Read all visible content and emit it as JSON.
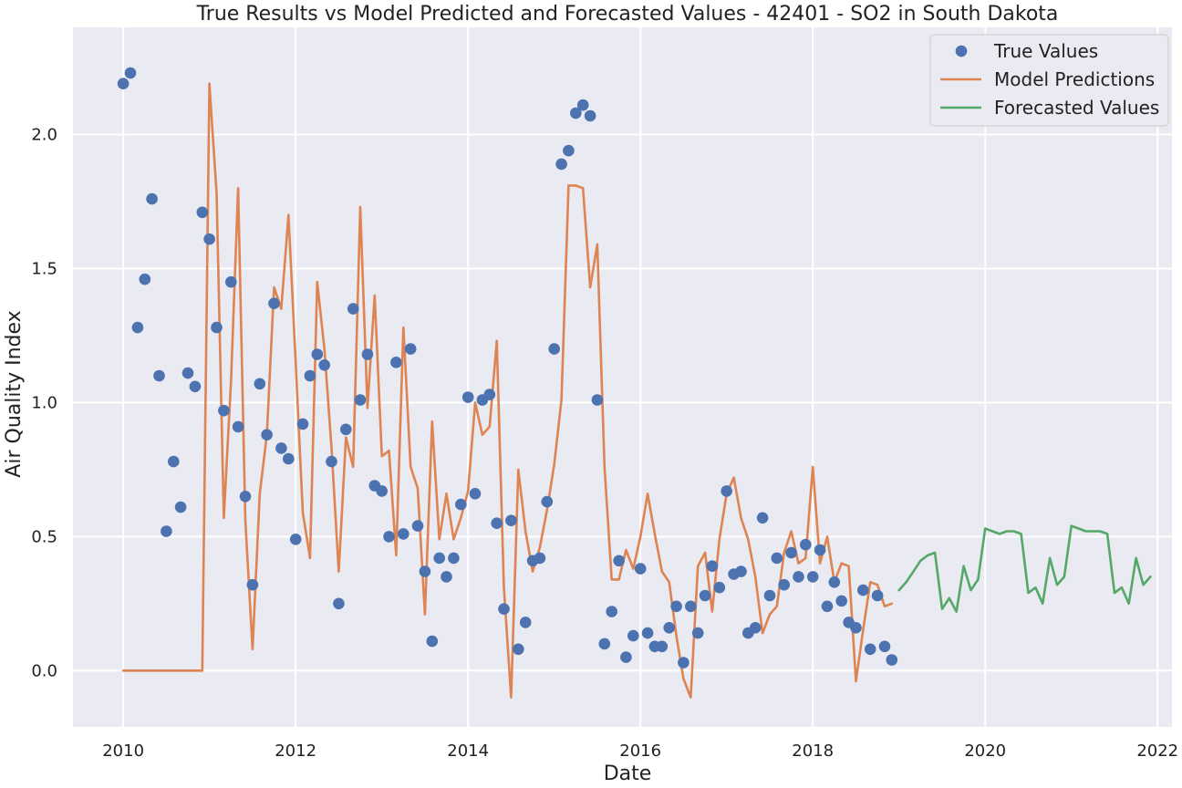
{
  "chart_data": {
    "type": "line",
    "title": "True Results vs Model Predicted and Forecasted Values - 42401 - SO2 in South Dakota",
    "xlabel": "Date",
    "ylabel": "Air Quality Index",
    "x_ticks": [
      "2010",
      "2012",
      "2014",
      "2016",
      "2018",
      "2020",
      "2022"
    ],
    "y_ticks": [
      "0.0",
      "0.5",
      "1.0",
      "1.5",
      "2.0"
    ],
    "xlim": [
      "2009-06",
      "2022-03"
    ],
    "ylim": [
      -0.21,
      2.4
    ],
    "grid": true,
    "legend_position": "top-right",
    "colors": {
      "true": "#4c72b0",
      "pred": "#dd8452",
      "forecast": "#55a868",
      "background": "#eaeaf2",
      "grid": "#ffffff"
    },
    "series": [
      {
        "name": "True Values",
        "style": "scatter",
        "start": "2010-01",
        "values": [
          2.19,
          2.23,
          1.28,
          1.46,
          1.76,
          1.1,
          0.52,
          0.78,
          0.61,
          1.11,
          1.06,
          1.71,
          1.61,
          1.28,
          0.97,
          1.45,
          0.91,
          0.65,
          0.32,
          1.07,
          0.88,
          1.37,
          0.83,
          0.79,
          0.49,
          0.92,
          1.1,
          1.18,
          1.14,
          0.78,
          0.25,
          0.9,
          1.35,
          1.01,
          1.18,
          0.69,
          0.67,
          0.5,
          1.15,
          0.51,
          1.2,
          0.54,
          0.37,
          0.11,
          0.42,
          0.35,
          0.42,
          0.62,
          1.02,
          0.66,
          1.01,
          1.03,
          0.55,
          0.23,
          0.56,
          0.08,
          0.18,
          0.41,
          0.42,
          0.63,
          1.2,
          1.89,
          1.94,
          2.08,
          2.11,
          2.07,
          1.01,
          0.1,
          0.22,
          0.41,
          0.05,
          0.13,
          0.38,
          0.14,
          0.09,
          0.09,
          0.16,
          0.24,
          0.03,
          0.24,
          0.14,
          0.28,
          0.39,
          0.31,
          0.67,
          0.36,
          0.37,
          0.14,
          0.16,
          0.57,
          0.28,
          0.42,
          0.32,
          0.44,
          0.35,
          0.47,
          0.35,
          0.45,
          0.24,
          0.33,
          0.26,
          0.18,
          0.16,
          0.3,
          0.08,
          0.28,
          0.09,
          0.04
        ]
      },
      {
        "name": "Model Predictions",
        "style": "line",
        "start": "2010-01",
        "values": [
          0.0,
          0.0,
          0.0,
          0.0,
          0.0,
          0.0,
          0.0,
          0.0,
          0.0,
          0.0,
          0.0,
          0.0,
          2.19,
          1.78,
          0.57,
          1.08,
          1.8,
          0.56,
          0.08,
          0.66,
          0.88,
          1.43,
          1.35,
          1.7,
          1.15,
          0.59,
          0.42,
          1.45,
          1.2,
          0.83,
          0.37,
          0.87,
          0.76,
          1.73,
          0.98,
          1.4,
          0.8,
          0.82,
          0.43,
          1.28,
          0.76,
          0.68,
          0.21,
          0.93,
          0.49,
          0.66,
          0.49,
          0.57,
          0.67,
          1.0,
          0.88,
          0.91,
          1.23,
          0.31,
          -0.1,
          0.75,
          0.52,
          0.37,
          0.46,
          0.6,
          0.77,
          1.01,
          1.81,
          1.81,
          1.8,
          1.43,
          1.59,
          0.76,
          0.34,
          0.34,
          0.45,
          0.38,
          0.5,
          0.66,
          0.51,
          0.37,
          0.33,
          0.13,
          -0.03,
          -0.1,
          0.39,
          0.44,
          0.22,
          0.49,
          0.66,
          0.72,
          0.57,
          0.49,
          0.35,
          0.14,
          0.21,
          0.24,
          0.44,
          0.52,
          0.4,
          0.42,
          0.76,
          0.4,
          0.5,
          0.33,
          0.4,
          0.39,
          -0.04,
          0.15,
          0.33,
          0.32,
          0.24,
          0.25
        ]
      },
      {
        "name": "Forecasted Values",
        "style": "line",
        "start": "2019-01",
        "values": [
          0.3,
          0.33,
          0.37,
          0.41,
          0.43,
          0.44,
          0.23,
          0.27,
          0.22,
          0.39,
          0.3,
          0.34,
          0.53,
          0.52,
          0.51,
          0.52,
          0.52,
          0.51,
          0.29,
          0.31,
          0.25,
          0.42,
          0.32,
          0.35,
          0.54,
          0.53,
          0.52,
          0.52,
          0.52,
          0.51,
          0.29,
          0.31,
          0.25,
          0.42,
          0.32,
          0.35
        ]
      }
    ]
  }
}
